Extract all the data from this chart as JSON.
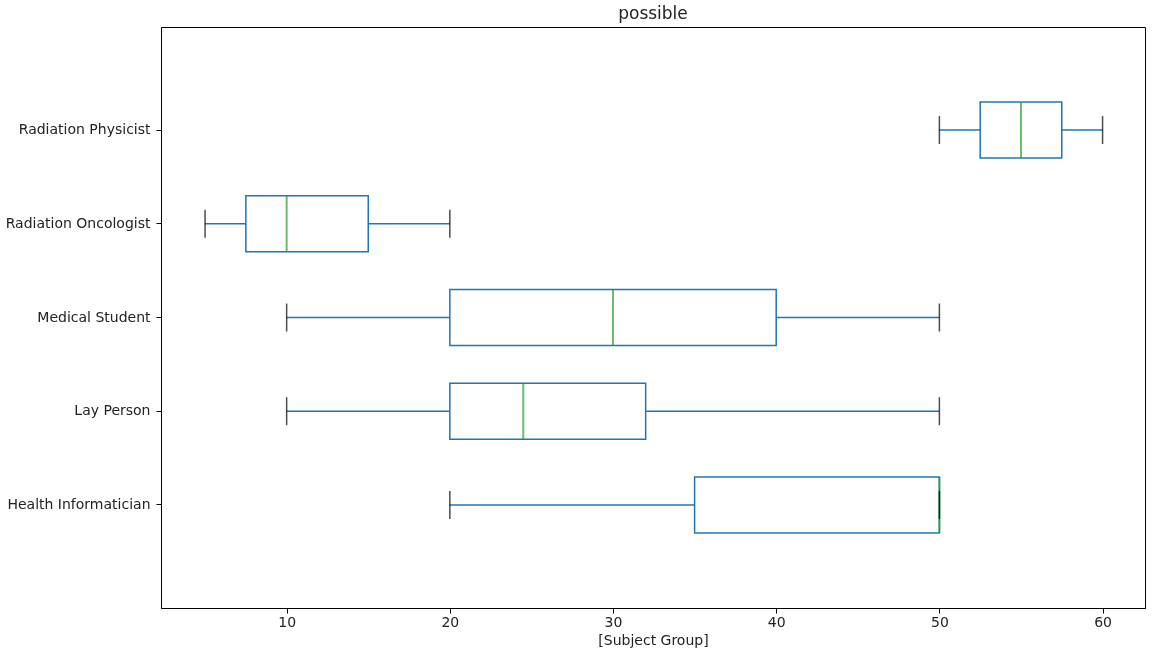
{
  "chart_data": {
    "type": "box",
    "title": "possible",
    "xlabel": "[Subject Group]",
    "orientation": "horizontal",
    "categories": [
      "Radiation Physicist",
      "Radiation Oncologist",
      "Medical Student",
      "Lay Person",
      "Health Informatician"
    ],
    "series": [
      {
        "color": "#1f77b4",
        "boxes": [
          {
            "low": 50,
            "q1": 52.5,
            "median": 55,
            "q3": 57.5,
            "high": 60
          },
          {
            "low": 5,
            "q1": 7.5,
            "median": 10,
            "q3": 15,
            "high": 20
          },
          {
            "low": 10,
            "q1": 20,
            "median": 30,
            "q3": 40,
            "high": 50
          },
          {
            "low": 10,
            "q1": 20,
            "median": 24.5,
            "q3": 32,
            "high": 50
          },
          {
            "low": 20,
            "q1": 35,
            "median": 50,
            "q3": 50,
            "high": 50
          }
        ]
      }
    ],
    "xlim": [
      2.3,
      62.6
    ],
    "xticks": [
      10,
      20,
      30,
      40,
      50,
      60
    ],
    "grid": false
  }
}
